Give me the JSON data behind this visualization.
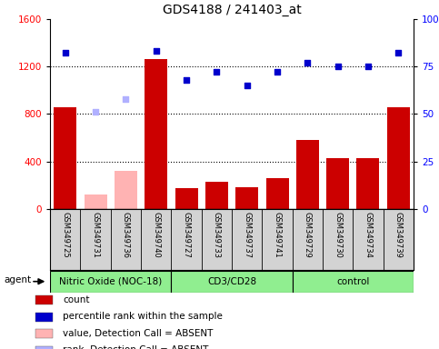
{
  "title": "GDS4188 / 241403_at",
  "samples": [
    "GSM349725",
    "GSM349731",
    "GSM349736",
    "GSM349740",
    "GSM349727",
    "GSM349733",
    "GSM349737",
    "GSM349741",
    "GSM349729",
    "GSM349730",
    "GSM349734",
    "GSM349739"
  ],
  "bar_values": [
    860,
    120,
    320,
    1260,
    175,
    230,
    185,
    260,
    580,
    430,
    430,
    860
  ],
  "bar_absent": [
    false,
    true,
    true,
    false,
    false,
    false,
    false,
    false,
    false,
    false,
    false,
    false
  ],
  "scatter_values": [
    82,
    51,
    58,
    83,
    68,
    72,
    65,
    72,
    77,
    75,
    75,
    82
  ],
  "scatter_absent": [
    false,
    true,
    true,
    false,
    false,
    false,
    false,
    false,
    false,
    false,
    false,
    false
  ],
  "ylim_left": [
    0,
    1600
  ],
  "ylim_right": [
    0,
    100
  ],
  "yticks_left": [
    0,
    400,
    800,
    1200,
    1600
  ],
  "yticks_right": [
    0,
    25,
    50,
    75,
    100
  ],
  "groups": [
    {
      "label": "Nitric Oxide (NOC-18)",
      "start": 0,
      "end": 4,
      "color": "#90EE90"
    },
    {
      "label": "CD3/CD28",
      "start": 4,
      "end": 8,
      "color": "#90EE90"
    },
    {
      "label": "control",
      "start": 8,
      "end": 12,
      "color": "#90EE90"
    }
  ],
  "agent_label": "agent",
  "bar_color_present": "#cc0000",
  "bar_color_absent": "#ffb3b3",
  "scatter_color_present": "#0000cc",
  "scatter_color_absent": "#b0b0ff",
  "plot_bg": "#ffffff",
  "tick_bg": "#d3d3d3",
  "legend_items": [
    {
      "color": "#cc0000",
      "label": "count"
    },
    {
      "color": "#0000cc",
      "label": "percentile rank within the sample"
    },
    {
      "color": "#ffb3b3",
      "label": "value, Detection Call = ABSENT"
    },
    {
      "color": "#b0b0ff",
      "label": "rank, Detection Call = ABSENT"
    }
  ]
}
